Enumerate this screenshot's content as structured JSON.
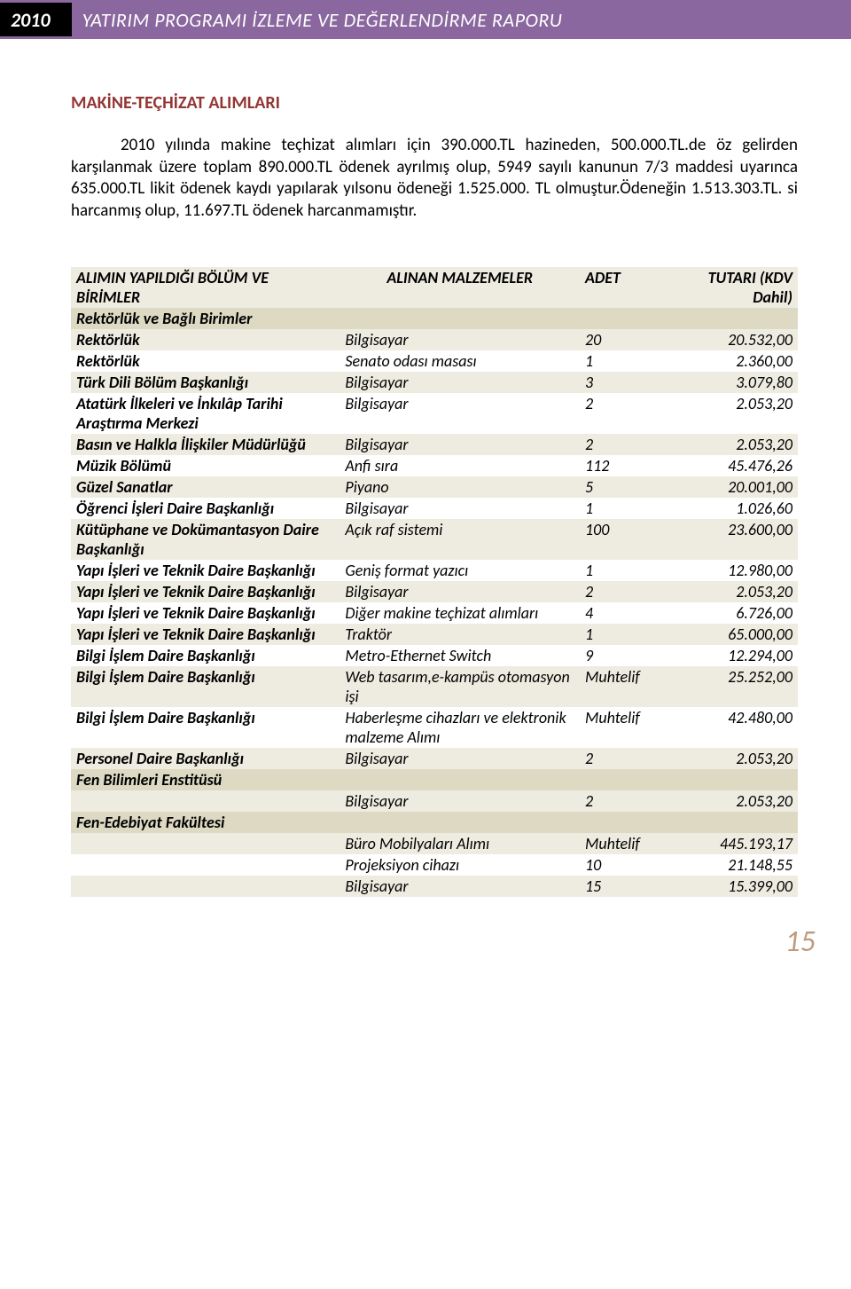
{
  "header": {
    "year": "2010",
    "title": "YATIRIM PROGRAMI İZLEME VE DEĞERLENDİRME RAPORU"
  },
  "section": {
    "heading": "MAKİNE-TEÇHİZAT ALIMLARI",
    "paragraph": "2010 yılında makine teçhizat alımları için 390.000.TL hazineden, 500.000.TL.de öz gelirden karşılanmak üzere toplam 890.000.TL ödenek ayrılmış olup, 5949 sayılı kanunun 7/3 maddesi uyarınca 635.000.TL likit ödenek kaydı yapılarak yılsonu ödeneği 1.525.000. TL olmuştur.Ödeneğin 1.513.303.TL. si harcanmış olup, 11.697.TL ödenek harcanmamıştır."
  },
  "table": {
    "columns": [
      "ALIMIN YAPILDIĞI BÖLÜM VE BİRİMLER",
      "ALINAN MALZEMELER",
      "ADET",
      "TUTARI (KDV Dahil)"
    ],
    "header_bg": "#eeece1",
    "section_bg": "#ddd9c3",
    "row_bg": "#eeece1",
    "alt_bg": "#ffffff",
    "font_size": 18,
    "rows": [
      {
        "type": "sec",
        "c1": "Rektörlük ve Bağlı Birimler",
        "c2": "",
        "c3": "",
        "c4": ""
      },
      {
        "type": "row",
        "c1": "Rektörlük",
        "c2": "Bilgisayar",
        "c3": "20",
        "c4": "20.532,00"
      },
      {
        "type": "alt",
        "c1": "Rektörlük",
        "c2": "Senato odası masası",
        "c3": "1",
        "c4": "2.360,00"
      },
      {
        "type": "row",
        "c1": "Türk Dili Bölüm Başkanlığı",
        "c2": "Bilgisayar",
        "c3": "3",
        "c4": "3.079,80"
      },
      {
        "type": "alt",
        "c1": "Atatürk İlkeleri ve İnkılâp Tarihi Araştırma Merkezi",
        "c2": "Bilgisayar",
        "c3": "2",
        "c4": "2.053,20"
      },
      {
        "type": "row",
        "c1": "Basın ve Halkla İlişkiler Müdürlüğü",
        "c2": "Bilgisayar",
        "c3": "2",
        "c4": "2.053,20"
      },
      {
        "type": "alt",
        "c1": "Müzik Bölümü",
        "c2": "Anfi sıra",
        "c3": "112",
        "c4": "45.476,26"
      },
      {
        "type": "row",
        "c1": "Güzel Sanatlar",
        "c2": "Piyano",
        "c3": "5",
        "c4": "20.001,00"
      },
      {
        "type": "alt",
        "c1": "Öğrenci İşleri Daire Başkanlığı",
        "c2": "Bilgisayar",
        "c3": "1",
        "c4": "1.026,60"
      },
      {
        "type": "row",
        "c1": "Kütüphane ve Dokümantasyon Daire Başkanlığı",
        "c2": "Açık raf sistemi",
        "c3": "100",
        "c4": "23.600,00"
      },
      {
        "type": "alt",
        "c1": "Yapı İşleri ve Teknik Daire Başkanlığı",
        "c2": "Geniş format yazıcı",
        "c3": "1",
        "c4": "12.980,00"
      },
      {
        "type": "row",
        "c1": "Yapı İşleri ve Teknik Daire Başkanlığı",
        "c2": "Bilgisayar",
        "c3": "2",
        "c4": "2.053,20"
      },
      {
        "type": "alt",
        "c1": "Yapı İşleri ve Teknik Daire Başkanlığı",
        "c2": "Diğer makine teçhizat alımları",
        "c3": "4",
        "c4": "6.726,00"
      },
      {
        "type": "row",
        "c1": "Yapı İşleri ve Teknik Daire Başkanlığı",
        "c2": "Traktör",
        "c3": "1",
        "c4": "65.000,00"
      },
      {
        "type": "alt",
        "c1": "Bilgi İşlem Daire Başkanlığı",
        "c2": "Metro-Ethernet Switch",
        "c3": "9",
        "c4": "12.294,00"
      },
      {
        "type": "row",
        "c1": "Bilgi İşlem Daire Başkanlığı",
        "c2": "Web tasarım,e-kampüs otomasyon işi",
        "c3": "Muhtelif",
        "c4": "25.252,00"
      },
      {
        "type": "alt",
        "c1": "Bilgi İşlem Daire Başkanlığı",
        "c2": "Haberleşme cihazları ve elektronik malzeme Alımı",
        "c3": "Muhtelif",
        "c4": "42.480,00"
      },
      {
        "type": "row",
        "c1": "Personel Daire Başkanlığı",
        "c2": "Bilgisayar",
        "c3": "2",
        "c4": "2.053,20"
      },
      {
        "type": "sec",
        "c1": "Fen Bilimleri Enstitüsü",
        "c2": "",
        "c3": "",
        "c4": ""
      },
      {
        "type": "row",
        "c1": "",
        "c2": "Bilgisayar",
        "c3": "2",
        "c4": "2.053,20"
      },
      {
        "type": "sec",
        "c1": "Fen-Edebiyat Fakültesi",
        "c2": "",
        "c3": "",
        "c4": ""
      },
      {
        "type": "row",
        "c1": "",
        "c2": "Büro Mobilyaları Alımı",
        "c3": "Muhtelif",
        "c4": "445.193,17"
      },
      {
        "type": "alt",
        "c1": "",
        "c2": "Projeksiyon cihazı",
        "c3": "10",
        "c4": "21.148,55"
      },
      {
        "type": "row",
        "c1": "",
        "c2": "Bilgisayar",
        "c3": "15",
        "c4": "15.399,00"
      }
    ]
  },
  "page_number": "15"
}
